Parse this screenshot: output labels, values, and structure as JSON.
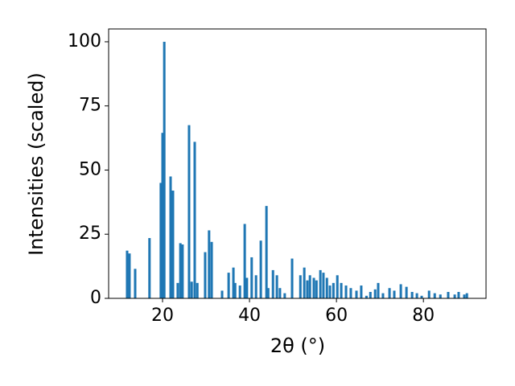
{
  "chart_data": {
    "type": "bar",
    "x_label": "2θ (°)",
    "y_label": "Intensities (scaled)",
    "color": "#1f77b4",
    "x": [
      11.85,
      12.4,
      13.7,
      17.0,
      19.6,
      20.0,
      20.4,
      21.85,
      22.4,
      23.5,
      24.1,
      24.6,
      26.1,
      26.7,
      27.4,
      28.0,
      29.8,
      30.7,
      31.3,
      33.7,
      35.2,
      36.3,
      36.7,
      37.8,
      38.9,
      39.4,
      40.5,
      41.5,
      42.6,
      43.9,
      44.3,
      45.4,
      46.3,
      47.0,
      48.1,
      49.8,
      51.7,
      52.6,
      53.3,
      53.9,
      54.8,
      55.4,
      56.3,
      57.0,
      57.8,
      58.5,
      59.3,
      60.2,
      61.1,
      62.2,
      63.3,
      64.6,
      65.7,
      66.9,
      67.8,
      68.9,
      69.6,
      70.7,
      72.2,
      73.3,
      74.8,
      76.1,
      77.4,
      78.5,
      79.6,
      81.3,
      82.6,
      83.9,
      85.7,
      87.2,
      88.1,
      89.4,
      90.0
    ],
    "values": [
      18.6,
      17.5,
      11.5,
      23.5,
      45,
      64.5,
      100,
      47.5,
      42,
      6,
      21.5,
      21,
      67.5,
      6.5,
      61,
      6,
      18,
      26.5,
      22,
      3,
      10,
      12,
      6,
      5,
      29,
      8,
      16,
      9,
      22.5,
      36,
      4,
      11,
      9,
      4,
      2,
      15.5,
      9,
      12,
      7,
      9,
      8,
      7,
      11,
      10,
      8,
      5,
      6,
      9,
      6,
      5,
      4,
      3,
      5,
      1,
      2.5,
      3.5,
      6,
      2,
      4,
      3,
      5.5,
      4.5,
      2.5,
      2,
      1,
      3,
      2,
      1.5,
      2.5,
      1.5,
      2.5,
      1.5,
      2
    ],
    "xlim": [
      7.6,
      94.4
    ],
    "ylim": [
      0,
      105
    ],
    "xticks": [
      20,
      40,
      60,
      80
    ],
    "yticks": [
      0,
      25,
      50,
      75,
      100
    ]
  }
}
